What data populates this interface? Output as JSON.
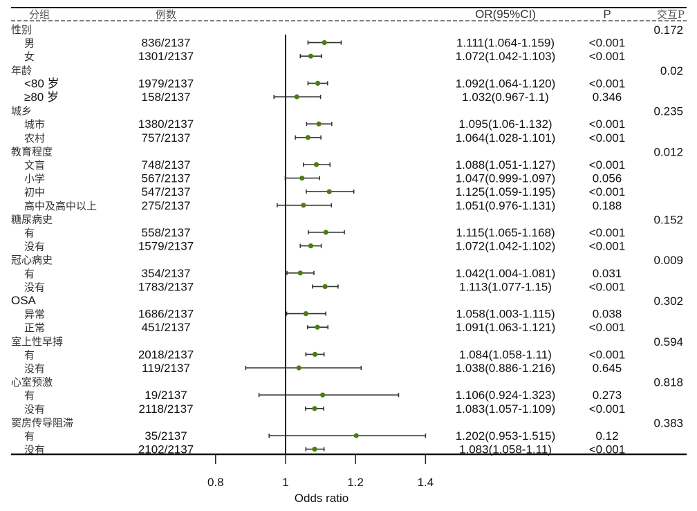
{
  "chart_data": {
    "type": "forest",
    "xlabel": "Odds ratio",
    "xlim": [
      0.8,
      1.4
    ],
    "reference_line": 1,
    "ticks": [
      0.8,
      1,
      1.2,
      1.4
    ],
    "tick_labels": [
      "0.8",
      "1",
      "1.2",
      "1.4"
    ],
    "headers": {
      "group": "分组",
      "n": "例数",
      "or": "OR(95%CI)",
      "p": "P",
      "p_interaction": "交互P"
    },
    "colors": {
      "point": "#4d7c0f",
      "line": "#333333"
    },
    "rows": [
      {
        "label": "性别",
        "header": true,
        "p_interaction": "0.172"
      },
      {
        "label": "男",
        "n": "836/2137",
        "or": 1.111,
        "lo": 1.064,
        "hi": 1.159,
        "or_text": "1.111(1.064-1.159)",
        "p": "<0.001"
      },
      {
        "label": "女",
        "n": "1301/2137",
        "or": 1.072,
        "lo": 1.042,
        "hi": 1.103,
        "or_text": "1.072(1.042-1.103)",
        "p": "<0.001"
      },
      {
        "label": "年龄",
        "header": true,
        "p_interaction": "0.02"
      },
      {
        "label": "<80 岁",
        "n": "1979/2137",
        "or": 1.092,
        "lo": 1.064,
        "hi": 1.12,
        "or_text": "1.092(1.064-1.120)",
        "p": "<0.001"
      },
      {
        "label": "≥80 岁",
        "n": "158/2137",
        "or": 1.032,
        "lo": 0.967,
        "hi": 1.1,
        "or_text": "1.032(0.967-1.1)",
        "p": "0.346"
      },
      {
        "label": "城乡",
        "header": true,
        "p_interaction": "0.235"
      },
      {
        "label": "城市",
        "n": "1380/2137",
        "or": 1.095,
        "lo": 1.06,
        "hi": 1.132,
        "or_text": "1.095(1.06-1.132)",
        "p": "<0.001"
      },
      {
        "label": "农村",
        "n": "757/2137",
        "or": 1.064,
        "lo": 1.028,
        "hi": 1.101,
        "or_text": "1.064(1.028-1.101)",
        "p": "<0.001"
      },
      {
        "label": "教育程度",
        "header": true,
        "p_interaction": "0.012"
      },
      {
        "label": "文盲",
        "n": "748/2137",
        "or": 1.088,
        "lo": 1.051,
        "hi": 1.127,
        "or_text": "1.088(1.051-1.127)",
        "p": "<0.001"
      },
      {
        "label": "小学",
        "n": "567/2137",
        "or": 1.047,
        "lo": 0.999,
        "hi": 1.097,
        "or_text": "1.047(0.999-1.097)",
        "p": "0.056"
      },
      {
        "label": "初中",
        "n": "547/2137",
        "or": 1.125,
        "lo": 1.059,
        "hi": 1.195,
        "or_text": "1.125(1.059-1.195)",
        "p": "<0.001"
      },
      {
        "label": "高中及高中以上",
        "n": "275/2137",
        "or": 1.051,
        "lo": 0.976,
        "hi": 1.131,
        "or_text": "1.051(0.976-1.131)",
        "p": "0.188"
      },
      {
        "label": "糖尿病史",
        "header": true,
        "p_interaction": "0.152"
      },
      {
        "label": "有",
        "n": "558/2137",
        "or": 1.115,
        "lo": 1.065,
        "hi": 1.168,
        "or_text": "1.115(1.065-1.168)",
        "p": "<0.001"
      },
      {
        "label": "没有",
        "n": "1579/2137",
        "or": 1.072,
        "lo": 1.042,
        "hi": 1.102,
        "or_text": "1.072(1.042-1.102)",
        "p": "<0.001"
      },
      {
        "label": "冠心病史",
        "header": true,
        "p_interaction": "0.009"
      },
      {
        "label": "有",
        "n": "354/2137",
        "or": 1.042,
        "lo": 1.004,
        "hi": 1.081,
        "or_text": "1.042(1.004-1.081)",
        "p": "0.031"
      },
      {
        "label": "没有",
        "n": "1783/2137",
        "or": 1.113,
        "lo": 1.077,
        "hi": 1.15,
        "or_text": "1.113(1.077-1.15)",
        "p": "<0.001"
      },
      {
        "label": "OSA",
        "header": true,
        "latin": true,
        "p_interaction": "0.302"
      },
      {
        "label": "异常",
        "n": "1686/2137",
        "or": 1.058,
        "lo": 1.003,
        "hi": 1.115,
        "or_text": "1.058(1.003-1.115)",
        "p": "0.038"
      },
      {
        "label": "正常",
        "n": "451/2137",
        "or": 1.091,
        "lo": 1.063,
        "hi": 1.121,
        "or_text": "1.091(1.063-1.121)",
        "p": "<0.001"
      },
      {
        "label": "室上性早搏",
        "header": true,
        "p_interaction": "0.594"
      },
      {
        "label": "有",
        "n": "2018/2137",
        "or": 1.084,
        "lo": 1.058,
        "hi": 1.11,
        "or_text": "1.084(1.058-1.11)",
        "p": "<0.001"
      },
      {
        "label": "没有",
        "n": "119/2137",
        "or": 1.038,
        "lo": 0.886,
        "hi": 1.216,
        "or_text": "1.038(0.886-1.216)",
        "p": "0.645"
      },
      {
        "label": "心室预激",
        "header": true,
        "p_interaction": "0.818"
      },
      {
        "label": "有",
        "n": "19/2137",
        "or": 1.106,
        "lo": 0.924,
        "hi": 1.323,
        "or_text": "1.106(0.924-1.323)",
        "p": "0.273"
      },
      {
        "label": "没有",
        "n": "2118/2137",
        "or": 1.083,
        "lo": 1.057,
        "hi": 1.109,
        "or_text": "1.083(1.057-1.109)",
        "p": "<0.001"
      },
      {
        "label": "窦房传导阻滞",
        "header": true,
        "p_interaction": "0.383"
      },
      {
        "label": "有",
        "n": "35/2137",
        "or": 1.202,
        "lo": 0.953,
        "hi": 1.515,
        "or_text": "1.202(0.953-1.515)",
        "p": "0.12"
      },
      {
        "label": "没有",
        "n": "2102/2137",
        "or": 1.083,
        "lo": 1.058,
        "hi": 1.11,
        "or_text": "1.083(1.058-1.11)",
        "p": "<0.001"
      }
    ]
  }
}
